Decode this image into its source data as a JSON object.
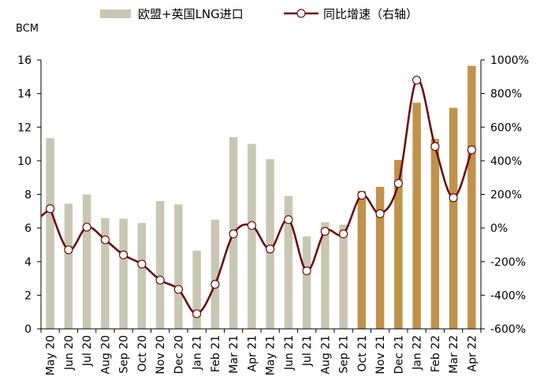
{
  "chart_data": {
    "type": "bar+line",
    "categories": [
      "May 20",
      "Jun 20",
      "Jul 20",
      "Aug 20",
      "Sep 20",
      "Oct 20",
      "Nov 20",
      "Dec 20",
      "Jan 21",
      "Feb 21",
      "Mar 21",
      "Apr 21",
      "May 21",
      "Jun 21",
      "Jul 21",
      "Aug 21",
      "Sep 21",
      "Oct 21",
      "Nov 21",
      "Dec 21",
      "Jan 22",
      "Feb 22",
      "Mar 22",
      "Apr 22"
    ],
    "series": [
      {
        "name": "欧盟+英国LNG进口",
        "type": "bar",
        "axis": "left",
        "values": [
          11.35,
          7.45,
          8.0,
          6.6,
          6.55,
          6.3,
          7.6,
          7.4,
          4.65,
          6.5,
          11.4,
          11.0,
          10.1,
          7.9,
          5.5,
          6.35,
          6.2,
          8.2,
          8.45,
          10.05,
          13.45,
          11.3,
          13.15,
          15.65
        ],
        "colors": [
          "#c8c7b3",
          "#c8c7b3",
          "#c8c7b3",
          "#c8c7b3",
          "#c8c7b3",
          "#c8c7b3",
          "#c8c7b3",
          "#c8c7b3",
          "#c8c7b3",
          "#c8c7b3",
          "#c8c7b3",
          "#c8c7b3",
          "#c8c7b3",
          "#c8c7b3",
          "#c8c7b3",
          "#c8c7b3",
          "#c8c7b3",
          "#c0924a",
          "#c0924a",
          "#c0924a",
          "#c0924a",
          "#c0924a",
          "#c0924a",
          "#c0924a"
        ]
      },
      {
        "name": "同比增速（右轴）",
        "type": "line",
        "axis": "right",
        "values": [
          115,
          -130,
          5,
          -70,
          -160,
          -215,
          -310,
          -365,
          -510,
          -335,
          -35,
          15,
          -125,
          50,
          -255,
          -20,
          -35,
          195,
          85,
          265,
          880,
          485,
          180,
          465
        ],
        "color": "#6b0f0f"
      }
    ],
    "y_left": {
      "unit": "BCM",
      "ylim": [
        0,
        16
      ],
      "ticks": [
        "0",
        "2",
        "4",
        "6",
        "8",
        "10",
        "12",
        "14",
        "16"
      ]
    },
    "y_right": {
      "ylim": [
        -600,
        1000
      ],
      "ticks": [
        "-600%",
        "-400%",
        "-200%",
        "0%",
        "200%",
        "400%",
        "600%",
        "800%",
        "1000%"
      ]
    },
    "legend": {
      "position": "top"
    },
    "grid": false,
    "colors": {
      "bar_light": "#c8c7b3",
      "bar_dark": "#c0924a",
      "line": "#6b0f0f",
      "marker_fill": "#ffffff"
    }
  }
}
